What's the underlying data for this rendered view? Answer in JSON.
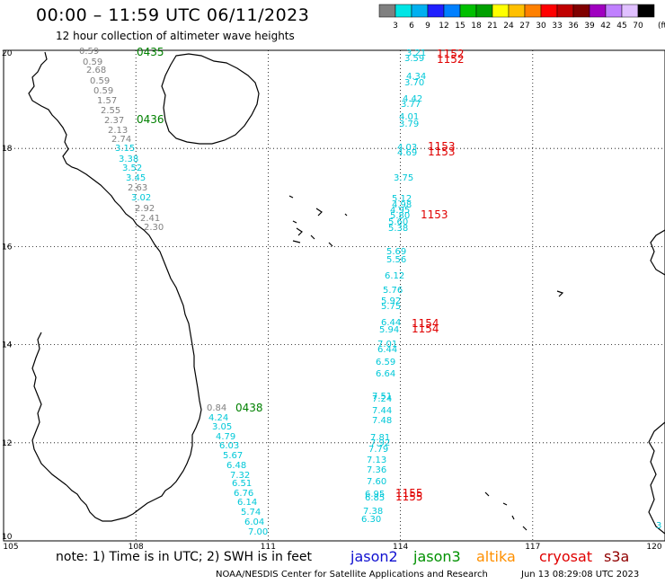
{
  "header": {
    "title": "00:00 – 11:59 UTC 06/11/2023",
    "subtitle": "12 hour collection of altimeter wave heights"
  },
  "legend": {
    "unit": "(ft)",
    "ticks": [
      "3",
      "6",
      "9",
      "12",
      "15",
      "18",
      "21",
      "24",
      "27",
      "30",
      "33",
      "36",
      "39",
      "42",
      "45",
      "70"
    ],
    "colors": [
      "#808080",
      "#00e5e5",
      "#00b0f0",
      "#2020ff",
      "#0080ff",
      "#00c000",
      "#00a000",
      "#ffff00",
      "#ffc000",
      "#ff8000",
      "#ff0000",
      "#c00000",
      "#800000",
      "#a000c0",
      "#c080ff",
      "#e0c0ff",
      "#000000"
    ]
  },
  "map": {
    "lat_range": [
      10,
      20
    ],
    "lon_range": [
      105,
      120
    ],
    "lat_labels": [
      "20",
      "18",
      "16",
      "14",
      "12",
      "10"
    ],
    "lon_labels": [
      "105",
      "108",
      "111",
      "114",
      "117",
      "120"
    ]
  },
  "tracks": {
    "gray": {
      "color": "#808080",
      "values": [
        "0.59",
        "0.59",
        "2.68",
        "0.59",
        "0.59",
        "1.57",
        "2.55",
        "2.37",
        "2.13",
        "2.74",
        "2.63",
        "2.92",
        "2.41",
        "2.30"
      ]
    },
    "coast_cyan": {
      "color": "#00c8d8",
      "values": [
        "3.15",
        "3.38",
        "3.52",
        "3.45",
        "3.02"
      ]
    },
    "south": {
      "color": "#00c8d8",
      "values": [
        "0.84",
        "4.24",
        "3.05",
        "4.79",
        "6.03",
        "5.67",
        "6.48",
        "7.32",
        "6.51",
        "6.76",
        "6.14",
        "5.74",
        "6.04",
        "7.00"
      ]
    },
    "east": {
      "color": "#00c8d8",
      "values": [
        "3.21",
        "3.59",
        "4.34",
        "3.70",
        "4.42",
        "3.77",
        "4.01",
        "3.79",
        "4.03",
        "4.69",
        "3.75",
        "5.12",
        "4.98",
        "4.95",
        "5.80",
        "5.60",
        "5.38",
        "5.69",
        "5.56",
        "6.12",
        "5.76",
        "5.92",
        "5.75",
        "6.44",
        "5.94",
        "7.01",
        "6.44",
        "6.59",
        "6.64",
        "7.51",
        "7.24",
        "7.44",
        "7.48",
        "7.81",
        "7.92",
        "7.79",
        "7.13",
        "7.36",
        "7.60",
        "6.95",
        "6.85",
        "7.38",
        "6.30"
      ]
    },
    "far_east": {
      "color": "#00c8d8",
      "values": [
        "3"
      ]
    }
  },
  "time_labels": {
    "green": [
      "0435",
      "0436",
      "0438"
    ],
    "red": [
      "1152",
      "1152",
      "1153",
      "1153",
      "1153",
      "1154",
      "1154",
      "1155",
      "1155"
    ]
  },
  "note": {
    "text": "note:  1) Time is in UTC;  2) SWH is in feet",
    "satellites": [
      {
        "name": "jason2",
        "color": "#1010d0"
      },
      {
        "name": "jason3",
        "color": "#009000"
      },
      {
        "name": "altika",
        "color": "#ff9000"
      },
      {
        "name": "cryosat",
        "color": "#e00000"
      },
      {
        "name": "s3a",
        "color": "#900000"
      }
    ]
  },
  "footer": {
    "center": "NOAA/NESDIS Center for Satellite Applications and Research",
    "timestamp": "Jun 13 08:29:08 UTC 2023"
  }
}
